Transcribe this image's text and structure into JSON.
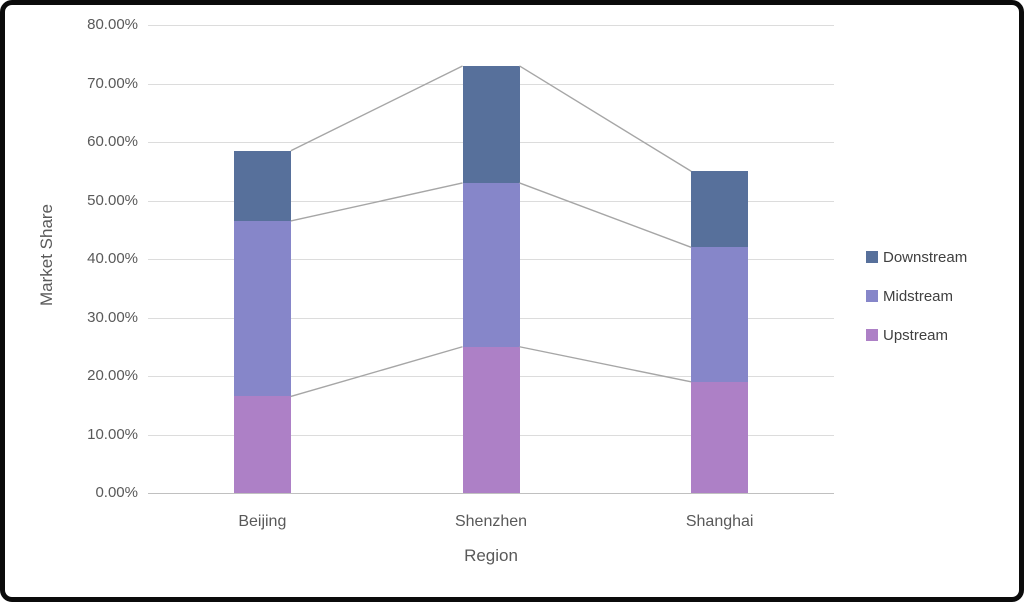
{
  "frame": {
    "border_color": "#0b0b0b",
    "background": "#ffffff"
  },
  "chart_data": {
    "type": "bar",
    "stacked": true,
    "title": "",
    "categories": [
      "Beijing",
      "Shenzhen",
      "Shanghai"
    ],
    "series": [
      {
        "name": "Upstream",
        "color": "#ad80c6",
        "values": [
          16.5,
          25,
          19
        ]
      },
      {
        "name": "Midstream",
        "color": "#8686c9",
        "values": [
          30,
          28,
          23
        ]
      },
      {
        "name": "Downstream",
        "color": "#57709b",
        "values": [
          12,
          20,
          13
        ]
      }
    ],
    "cumulative_totals": {
      "Beijing": 58.5,
      "Shenzhen": 73,
      "Shanghai": 55
    },
    "xlabel": "Region",
    "ylabel": "Market Share",
    "ylim": [
      0,
      80
    ],
    "ytick_step": 10,
    "yticks": [
      "0.00%",
      "10.00%",
      "20.00%",
      "30.00%",
      "40.00%",
      "50.00%",
      "60.00%",
      "70.00%",
      "80.00%"
    ],
    "grid": true,
    "legend_position": "right",
    "legend_order": [
      "Downstream",
      "Midstream",
      "Upstream"
    ],
    "series_lines": true,
    "colors": {
      "gridline": "#dcdcdc",
      "zero_line": "#c0c0c0",
      "series_line": "#a6a6a6",
      "tick_text": "#595959",
      "legend_text": "#404040"
    }
  }
}
